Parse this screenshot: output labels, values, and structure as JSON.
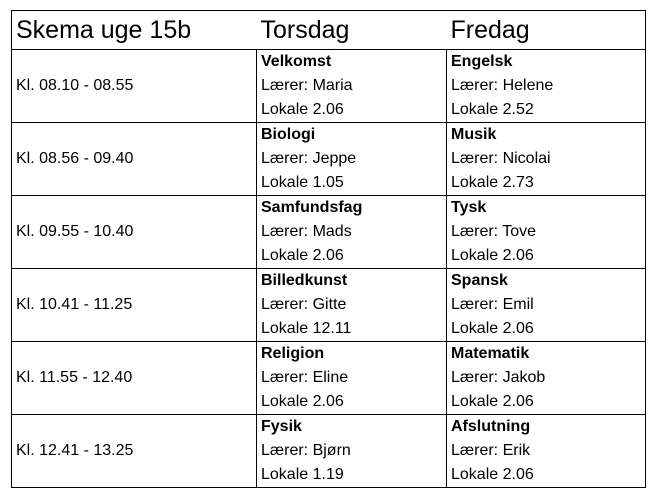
{
  "header": {
    "title": "Skema uge 15b",
    "day1": "Torsdag",
    "day2": "Fredag"
  },
  "rows": [
    {
      "time": "Kl. 08.10 - 08.55",
      "d1": {
        "subject": "Velkomst",
        "teacher": "Lærer: Maria",
        "room": "Lokale 2.06"
      },
      "d2": {
        "subject": "Engelsk",
        "teacher": "Lærer: Helene",
        "room": "Lokale 2.52"
      }
    },
    {
      "time": "Kl. 08.56 - 09.40",
      "d1": {
        "subject": "Biologi",
        "teacher": "Lærer: Jeppe",
        "room": "Lokale 1.05"
      },
      "d2": {
        "subject": "Musik",
        "teacher": "Lærer: Nicolai",
        "room": "Lokale 2.73"
      }
    },
    {
      "time": "Kl. 09.55 - 10.40",
      "d1": {
        "subject": "Samfundsfag",
        "teacher": "Lærer: Mads",
        "room": "Lokale 2.06"
      },
      "d2": {
        "subject": "Tysk",
        "teacher": "Lærer: Tove",
        "room": "Lokale 2.06"
      }
    },
    {
      "time": "Kl. 10.41 - 11.25",
      "d1": {
        "subject": "Billedkunst",
        "teacher": "Lærer: Gitte",
        "room": "Lokale 12.11"
      },
      "d2": {
        "subject": "Spansk",
        "teacher": "Lærer: Emil",
        "room": "Lokale 2.06"
      }
    },
    {
      "time": "Kl. 11.55 - 12.40",
      "d1": {
        "subject": "Religion",
        "teacher": "Lærer: Eline",
        "room": "Lokale 2.06"
      },
      "d2": {
        "subject": "Matematik",
        "teacher": "Lærer: Jakob",
        "room": "Lokale 2.06"
      }
    },
    {
      "time": "Kl. 12.41 - 13.25",
      "d1": {
        "subject": "Fysik",
        "teacher": "Lærer: Bjørn",
        "room": "Lokale 1.19"
      },
      "d2": {
        "subject": "Afslutning",
        "teacher": "Lærer: Erik",
        "room": "Lokale 2.06"
      }
    }
  ]
}
